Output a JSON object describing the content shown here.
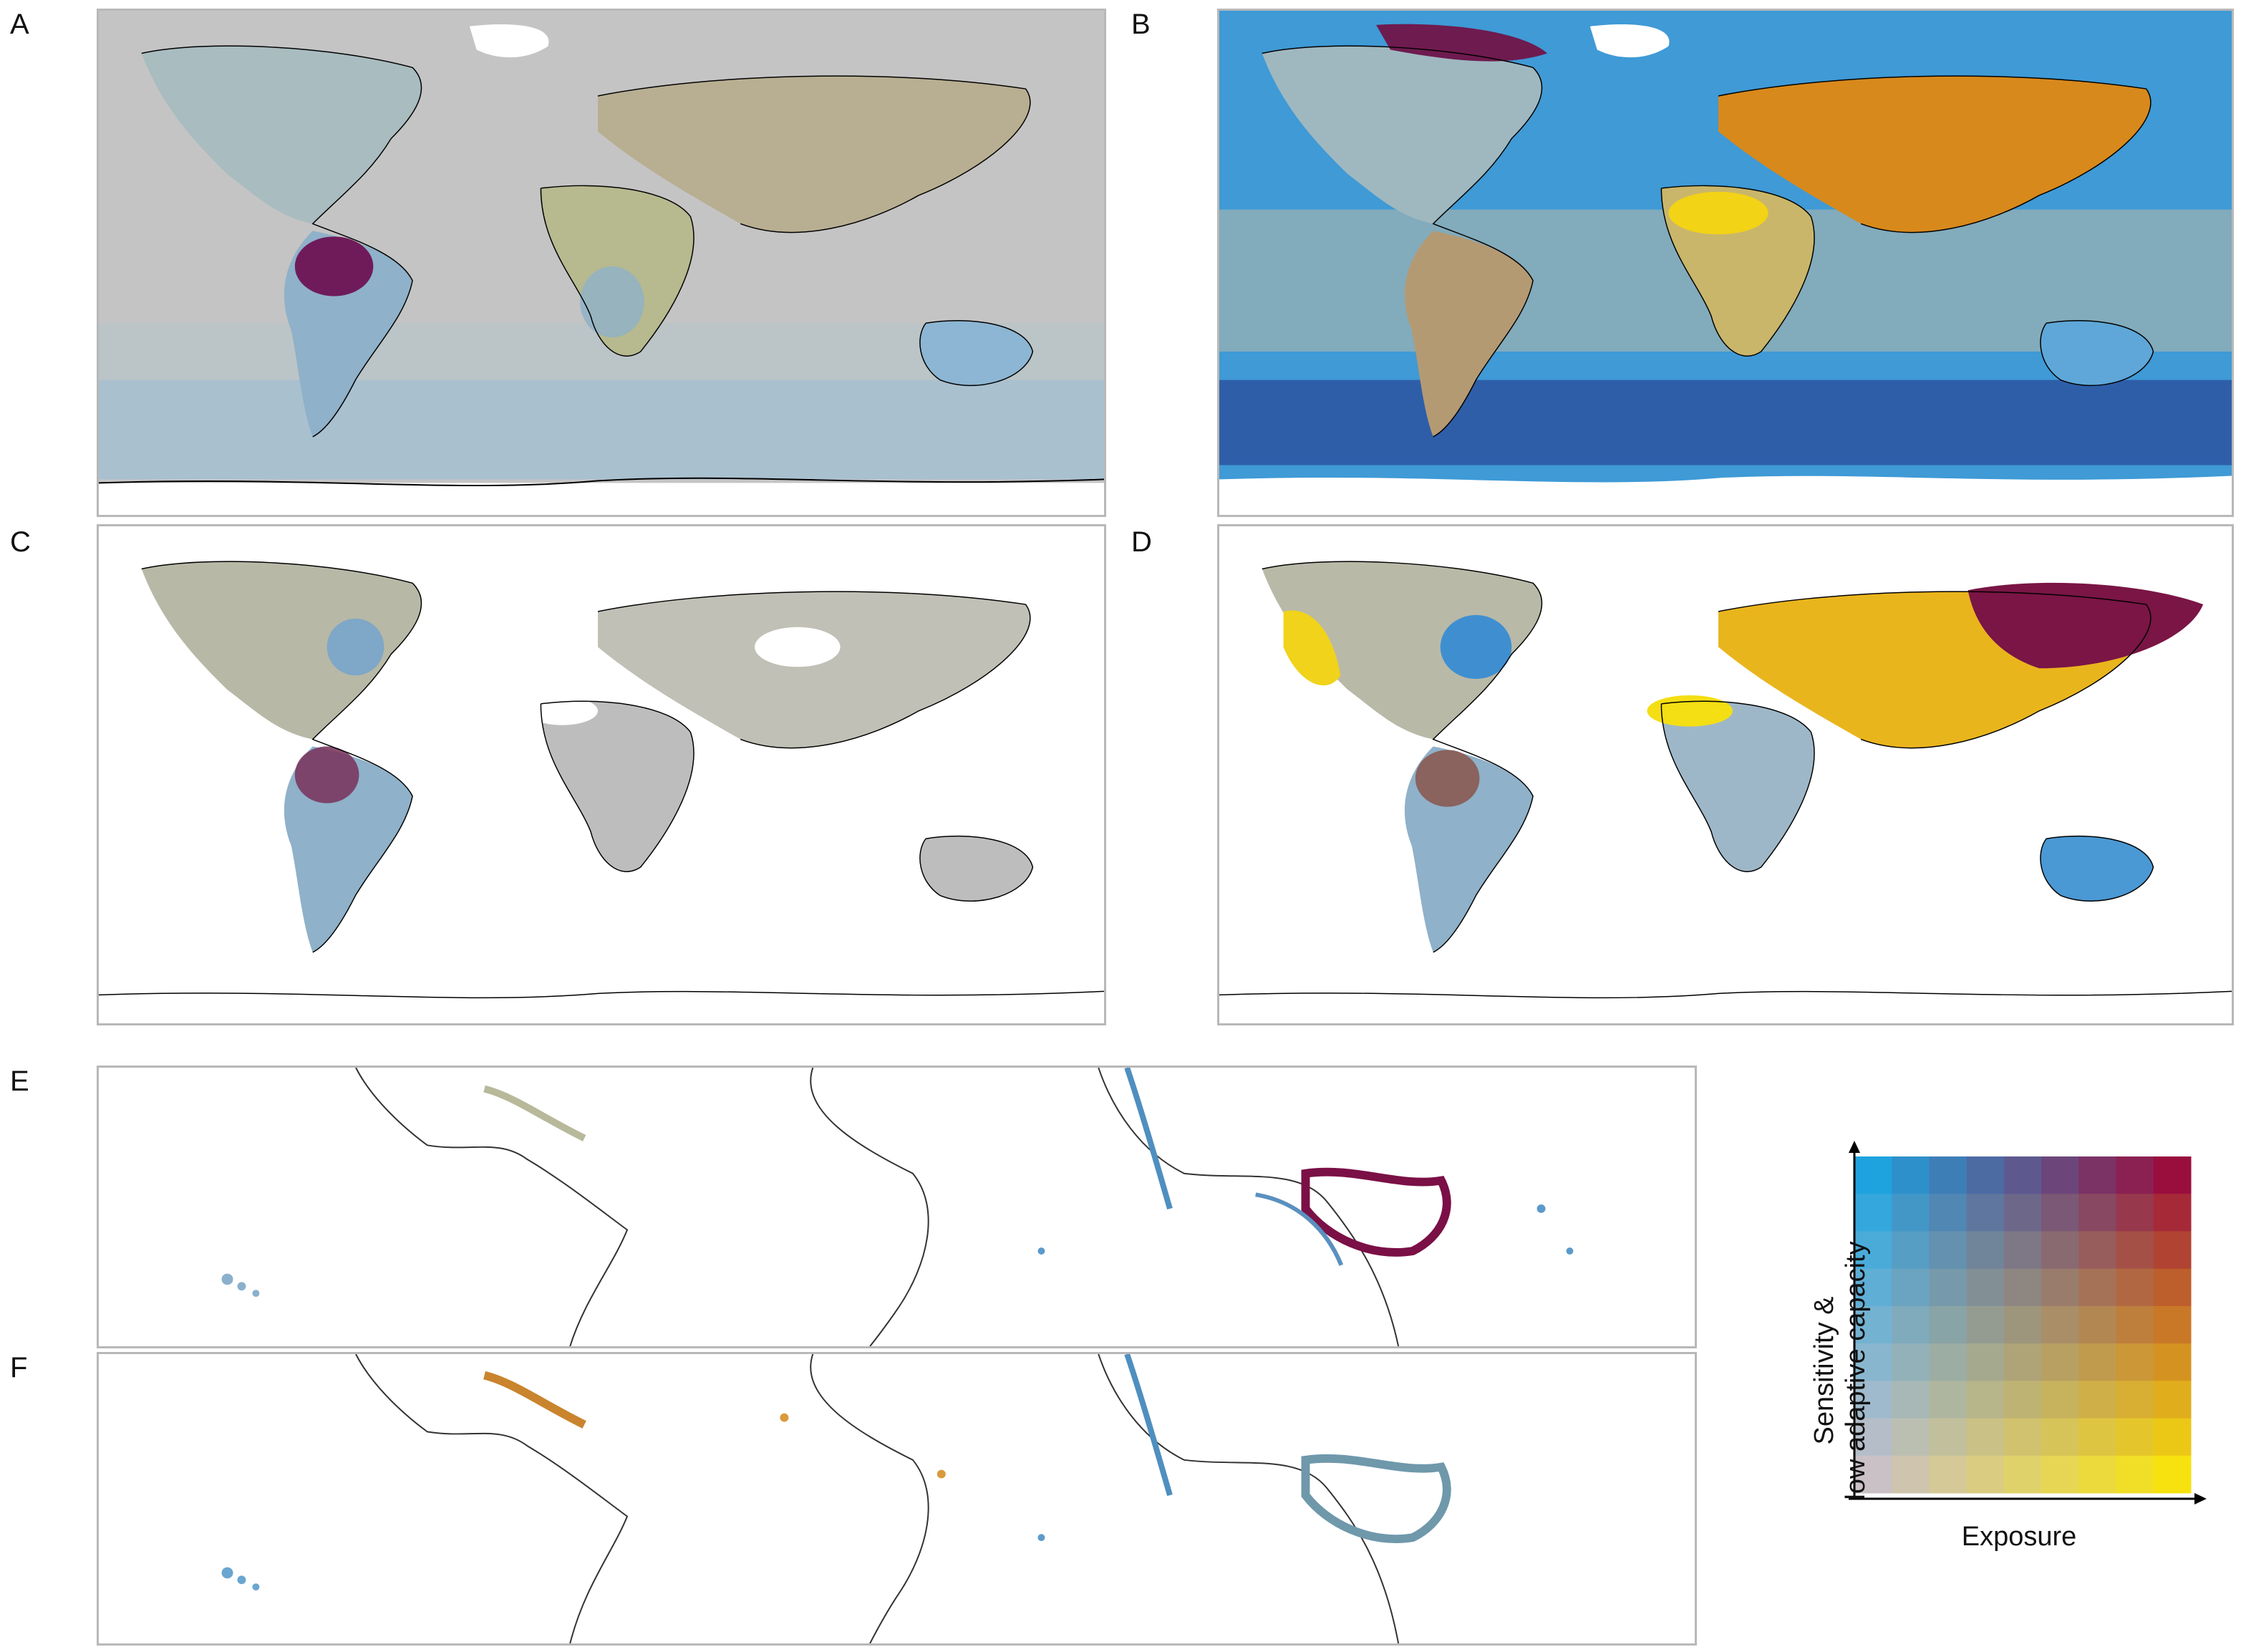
{
  "panels": [
    {
      "label": "A",
      "scheme": "global-A"
    },
    {
      "label": "B",
      "scheme": "global-B"
    },
    {
      "label": "C",
      "scheme": "land-C"
    },
    {
      "label": "D",
      "scheme": "land-D"
    },
    {
      "label": "E",
      "scheme": "reef-E"
    },
    {
      "label": "F",
      "scheme": "reef-F"
    }
  ],
  "legend": {
    "y_label_line1": "Sensitivity &",
    "y_label_line2": "low adaptive capacity",
    "x_label": "Exposure",
    "grid_size": 9,
    "corner_colors": {
      "low_low": "#c9c1c5",
      "high_exposure_low_sensitivity": "#f7e210",
      "low_exposure_high_sensitivity": "#1fa3df",
      "high_high": "#9a0e3e"
    }
  },
  "colors": {
    "ocean_grey": "#c3c3c3",
    "land_fill": "#b9b9b9",
    "coast": "#000000",
    "ice": "#ffffff",
    "purple": "#6a1a5a",
    "maroon": "#7a0f44",
    "orange": "#d4861d",
    "yellow": "#f5dc12",
    "blue": "#3d98d6",
    "deep_blue": "#2b5aa8",
    "olive": "#b9b48a",
    "light_blue": "#7fb2cf"
  }
}
